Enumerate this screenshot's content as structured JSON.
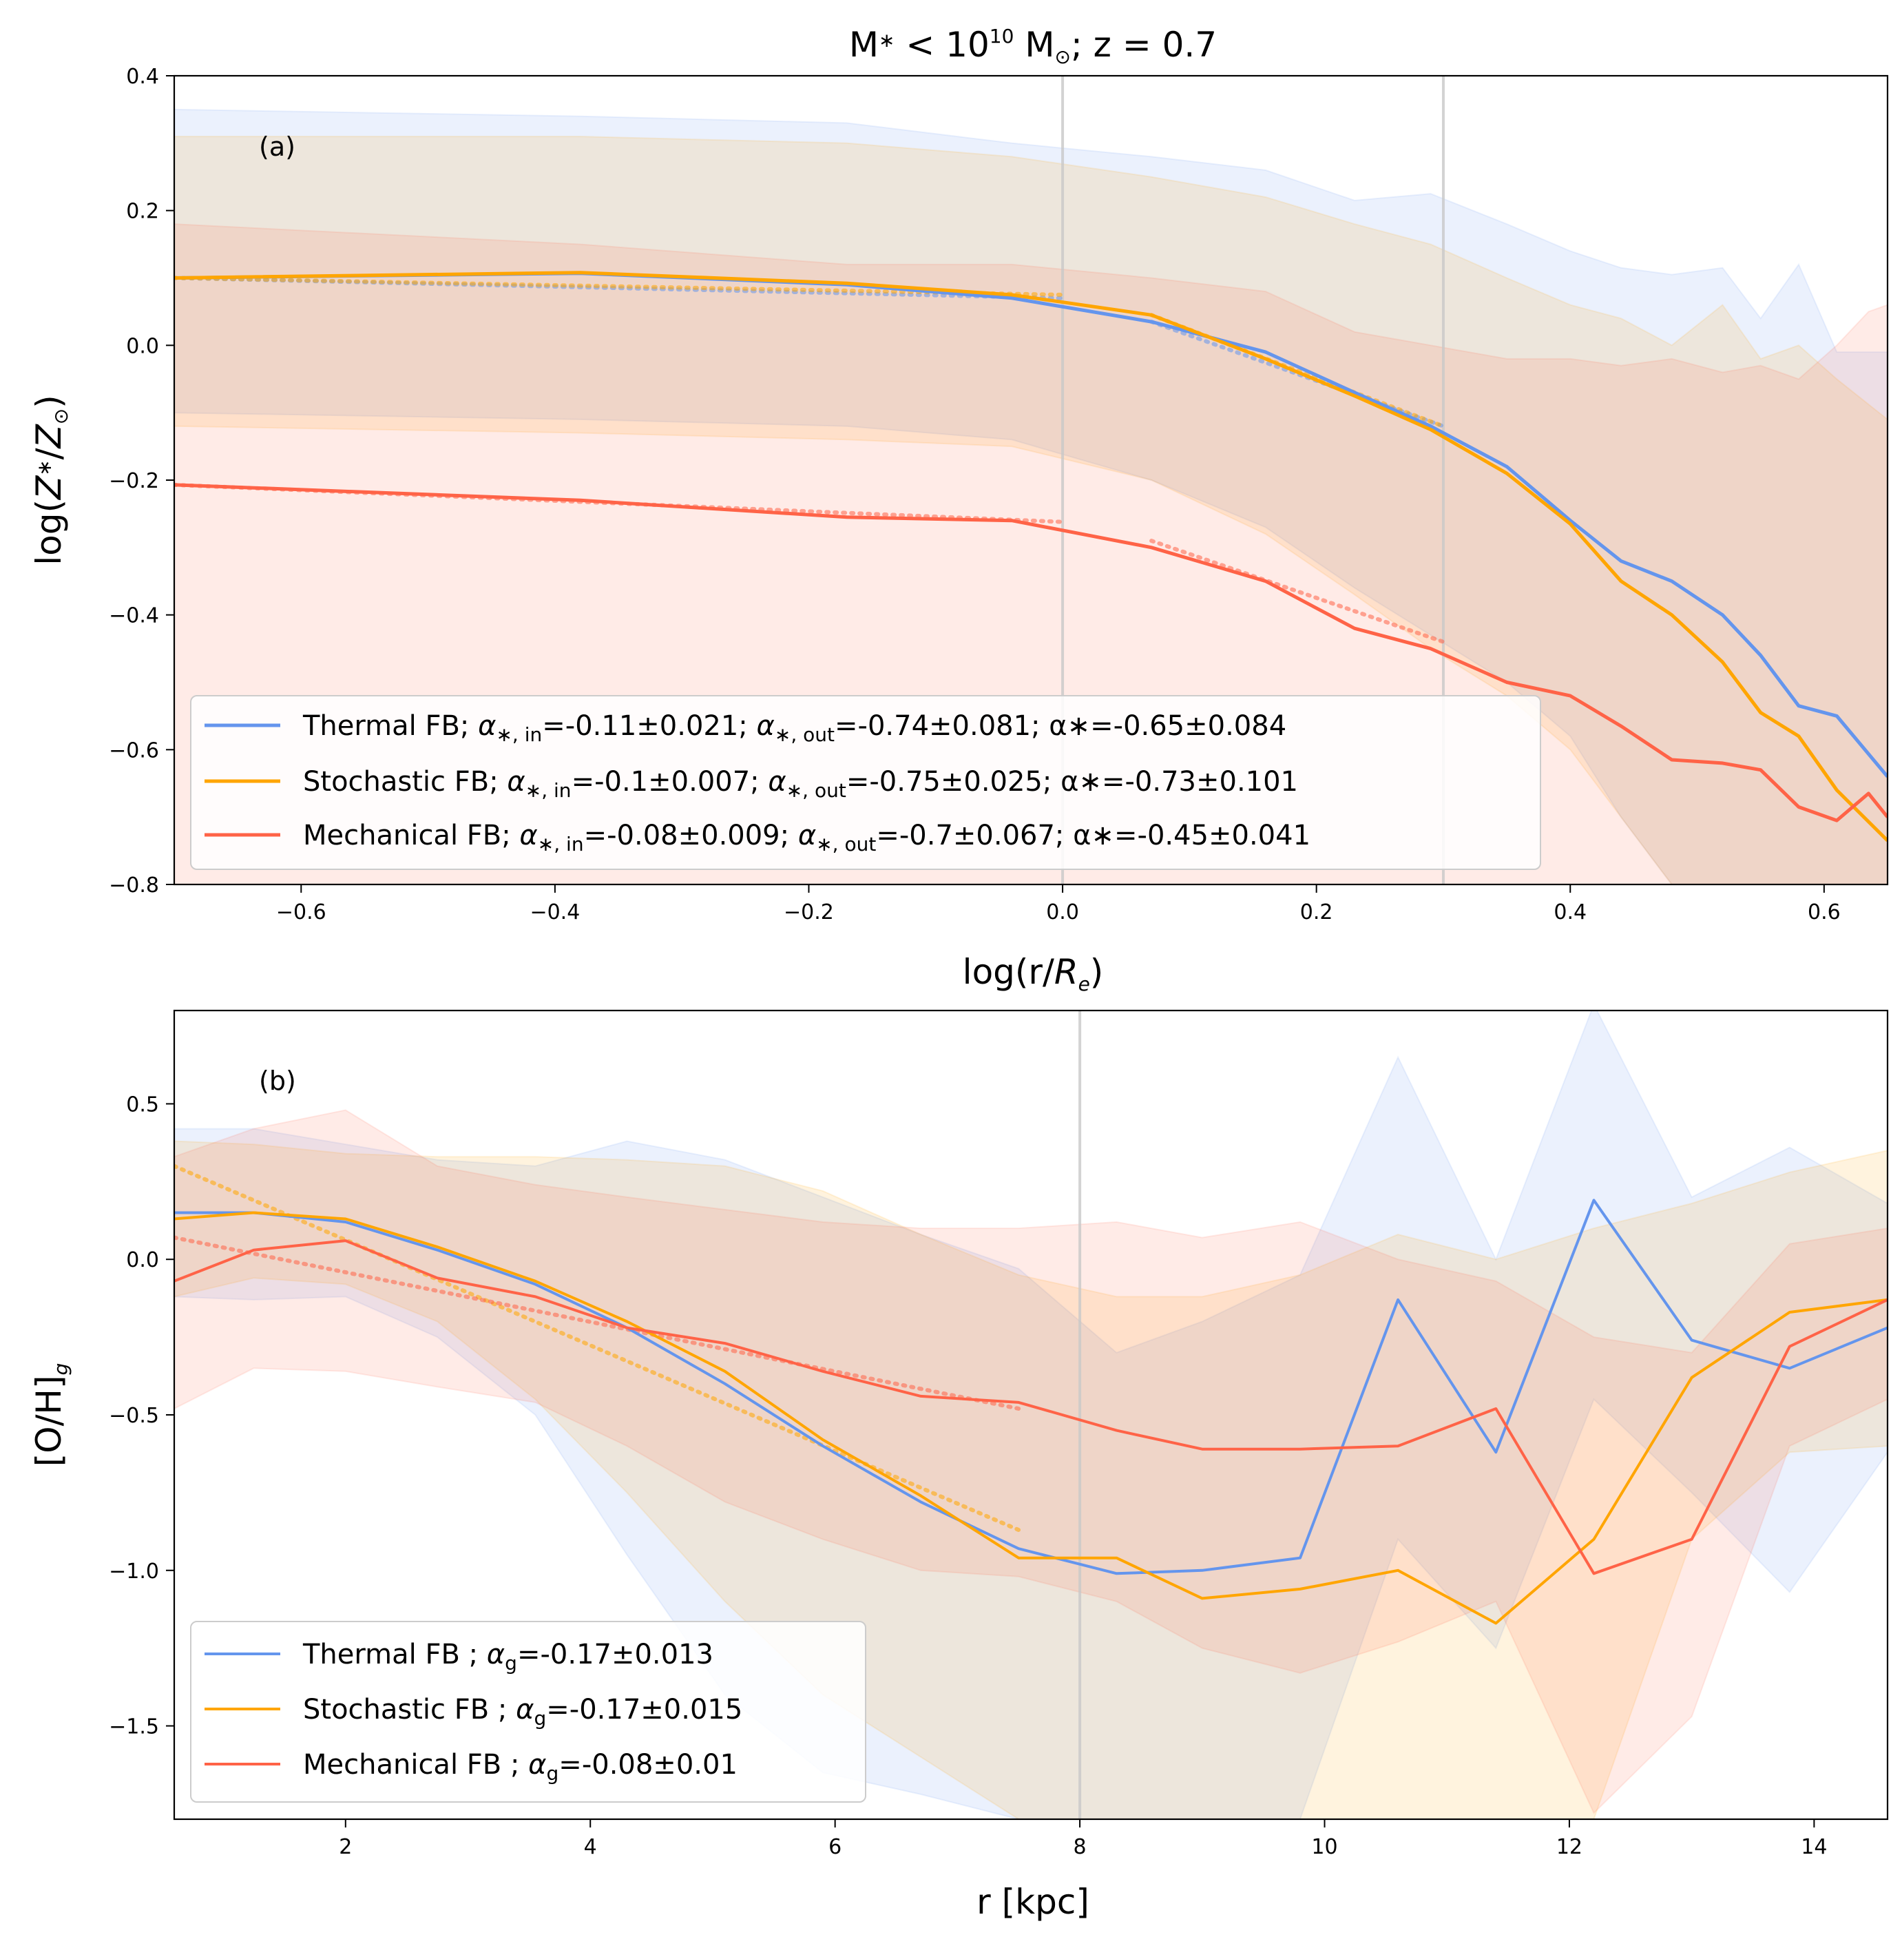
{
  "colors": {
    "thermal": "#6495ed",
    "stochastic": "#ffa500",
    "mechanical": "#ff6347",
    "vline": "#c8c8c8"
  },
  "chart_data": [
    {
      "type": "line",
      "panel_label": "(a)",
      "title": {
        "prefix": "M",
        "star": "∗",
        "lt": " < 10",
        "exp": "10",
        "unit": " M",
        "sun": "⊙",
        "rest": "; z = 0.7"
      },
      "xlabel": {
        "pre": "log(r/",
        "R": "R",
        "sub": "e",
        "post": ")"
      },
      "ylabel": {
        "pre": "log(",
        "Z": "Z",
        "star": "∗",
        "slash": "/",
        "Z2": "Z",
        "sun": "⊙",
        "post": ")"
      },
      "xlim": [
        -0.7,
        0.65
      ],
      "ylim": [
        -0.8,
        0.4
      ],
      "xticks": [
        -0.6,
        -0.4,
        -0.2,
        0.0,
        0.2,
        0.4,
        0.6
      ],
      "xtick_labels": [
        "−0.6",
        "−0.4",
        "−0.2",
        "0.0",
        "0.2",
        "0.4",
        "0.6"
      ],
      "yticks": [
        -0.8,
        -0.6,
        -0.4,
        -0.2,
        0.0,
        0.2,
        0.4
      ],
      "ytick_labels": [
        "−0.8",
        "−0.6",
        "−0.4",
        "−0.2",
        "0.0",
        "0.2",
        "0.4"
      ],
      "vlines": [
        0.0,
        0.3
      ],
      "series": [
        {
          "key": "thermal",
          "x": [
            -0.7,
            -0.38,
            -0.17,
            -0.04,
            0.07,
            0.16,
            0.23,
            0.29,
            0.35,
            0.4,
            0.44,
            0.48,
            0.52,
            0.55,
            0.58,
            0.61,
            0.65
          ],
          "y": [
            0.1,
            0.107,
            0.09,
            0.07,
            0.035,
            -0.01,
            -0.07,
            -0.12,
            -0.18,
            -0.26,
            -0.32,
            -0.35,
            -0.4,
            -0.46,
            -0.535,
            -0.55,
            -0.64
          ],
          "upper": [
            0.35,
            0.34,
            0.33,
            0.3,
            0.28,
            0.26,
            0.215,
            0.225,
            0.18,
            0.14,
            0.115,
            0.105,
            0.115,
            0.04,
            0.12,
            -0.01,
            -0.01
          ],
          "lower": [
            -0.1,
            -0.11,
            -0.12,
            -0.14,
            -0.2,
            -0.27,
            -0.36,
            -0.43,
            -0.5,
            -0.58,
            -0.7,
            -0.8,
            -0.8,
            -0.8,
            -0.8,
            -0.8,
            -0.8
          ],
          "fit": [
            {
              "x": [
                -0.7,
                0.0
              ],
              "y": [
                0.1,
                0.07
              ]
            },
            {
              "x": [
                0.07,
                0.3
              ],
              "y": [
                0.035,
                -0.12
              ]
            }
          ],
          "legend": {
            "name": "Thermal FB; ",
            "alpha": "α",
            "sub_in": "∗, in",
            "val_in": "=-0.11±0.021; ",
            "sub_out": "∗, out",
            "val_out": "=-0.74±0.081; ",
            "tot": "α∗=-0.65±0.084"
          }
        },
        {
          "key": "stochastic",
          "x": [
            -0.7,
            -0.38,
            -0.17,
            -0.04,
            0.07,
            0.16,
            0.23,
            0.29,
            0.35,
            0.4,
            0.44,
            0.48,
            0.52,
            0.55,
            0.58,
            0.61,
            0.65
          ],
          "y": [
            0.1,
            0.108,
            0.092,
            0.075,
            0.045,
            -0.02,
            -0.075,
            -0.125,
            -0.19,
            -0.265,
            -0.35,
            -0.4,
            -0.47,
            -0.545,
            -0.58,
            -0.66,
            -0.735
          ],
          "upper": [
            0.31,
            0.31,
            0.3,
            0.28,
            0.25,
            0.22,
            0.18,
            0.15,
            0.1,
            0.06,
            0.04,
            0.0,
            0.06,
            -0.02,
            0.0,
            -0.05,
            -0.11
          ],
          "lower": [
            -0.12,
            -0.13,
            -0.14,
            -0.15,
            -0.2,
            -0.28,
            -0.37,
            -0.45,
            -0.52,
            -0.6,
            -0.7,
            -0.8,
            -0.8,
            -0.8,
            -0.8,
            -0.8,
            -0.8
          ],
          "fit": [
            {
              "x": [
                -0.7,
                0.0
              ],
              "y": [
                0.1,
                0.075
              ]
            },
            {
              "x": [
                0.07,
                0.3
              ],
              "y": [
                0.045,
                -0.12
              ]
            }
          ],
          "legend": {
            "name": "Stochastic FB; ",
            "alpha": "α",
            "sub_in": "∗, in",
            "val_in": "=-0.1±0.007; ",
            "sub_out": "∗, out",
            "val_out": "=-0.75±0.025; ",
            "tot": "α∗=-0.73±0.101"
          }
        },
        {
          "key": "mechanical",
          "x": [
            -0.7,
            -0.38,
            -0.17,
            -0.04,
            0.07,
            0.16,
            0.23,
            0.29,
            0.35,
            0.4,
            0.44,
            0.48,
            0.52,
            0.55,
            0.58,
            0.61,
            0.635,
            0.65
          ],
          "y": [
            -0.207,
            -0.23,
            -0.255,
            -0.26,
            -0.3,
            -0.35,
            -0.42,
            -0.45,
            -0.5,
            -0.52,
            -0.565,
            -0.615,
            -0.62,
            -0.63,
            -0.685,
            -0.705,
            -0.665,
            -0.7
          ],
          "upper": [
            0.18,
            0.15,
            0.12,
            0.12,
            0.1,
            0.08,
            0.02,
            0.0,
            -0.02,
            -0.02,
            -0.03,
            -0.02,
            -0.04,
            -0.03,
            -0.05,
            0.0,
            0.05,
            0.06
          ],
          "lower": [
            -0.8,
            -0.8,
            -0.8,
            -0.8,
            -0.8,
            -0.8,
            -0.8,
            -0.8,
            -0.8,
            -0.8,
            -0.8,
            -0.8,
            -0.8,
            -0.8,
            -0.8,
            -0.8,
            -0.8,
            -0.8
          ],
          "fit": [
            {
              "x": [
                -0.7,
                0.0
              ],
              "y": [
                -0.207,
                -0.262
              ]
            },
            {
              "x": [
                0.07,
                0.3
              ],
              "y": [
                -0.29,
                -0.44
              ]
            }
          ],
          "legend": {
            "name": "Mechanical FB; ",
            "alpha": "α",
            "sub_in": "∗, in",
            "val_in": "=-0.08±0.009; ",
            "sub_out": "∗, out",
            "val_out": "=-0.7±0.067; ",
            "tot": "α∗=-0.45±0.041"
          }
        }
      ]
    },
    {
      "type": "line",
      "panel_label": "(b)",
      "xlabel": "r [kpc]",
      "ylabel": {
        "pre": "[O/H]",
        "sub": "g"
      },
      "xlim": [
        0.6,
        14.6
      ],
      "ylim": [
        -1.8,
        0.8
      ],
      "xticks": [
        2,
        4,
        6,
        8,
        10,
        12,
        14
      ],
      "xtick_labels": [
        "2",
        "4",
        "6",
        "8",
        "10",
        "12",
        "14"
      ],
      "yticks": [
        -1.5,
        -1.0,
        -0.5,
        0.0,
        0.5
      ],
      "ytick_labels": [
        "−1.5",
        "−1.0",
        "−0.5",
        "0.0",
        "0.5"
      ],
      "vlines": [
        8.0
      ],
      "series": [
        {
          "key": "thermal",
          "x": [
            0.6,
            1.25,
            2.0,
            2.75,
            3.55,
            4.3,
            5.1,
            5.9,
            6.7,
            7.5,
            8.3,
            9.0,
            9.8,
            10.6,
            11.4,
            12.2,
            13.0,
            13.8,
            14.6
          ],
          "y": [
            0.15,
            0.15,
            0.12,
            0.03,
            -0.08,
            -0.22,
            -0.4,
            -0.6,
            -0.78,
            -0.93,
            -1.01,
            -1.0,
            -0.96,
            -0.13,
            -0.62,
            0.19,
            -0.26,
            -0.35,
            -0.22
          ],
          "upper": [
            0.42,
            0.42,
            0.37,
            0.32,
            0.3,
            0.38,
            0.32,
            0.2,
            0.08,
            -0.03,
            -0.3,
            -0.2,
            -0.05,
            0.65,
            0.0,
            0.82,
            0.2,
            0.36,
            0.18
          ],
          "lower": [
            -0.12,
            -0.13,
            -0.12,
            -0.25,
            -0.5,
            -0.95,
            -1.4,
            -1.65,
            -1.72,
            -1.8,
            -1.8,
            -1.8,
            -1.8,
            -0.9,
            -1.25,
            -0.45,
            -0.75,
            -1.07,
            -0.62
          ],
          "fit": [],
          "legend": {
            "name": "Thermal FB ; ",
            "alpha": "α",
            "sub": "g",
            "val": "=-0.17±0.013"
          }
        },
        {
          "key": "stochastic",
          "x": [
            0.6,
            1.25,
            2.0,
            2.75,
            3.55,
            4.3,
            5.1,
            5.9,
            6.7,
            7.5,
            8.3,
            9.0,
            9.8,
            10.6,
            11.4,
            12.2,
            13.0,
            13.8,
            14.6
          ],
          "y": [
            0.13,
            0.15,
            0.13,
            0.04,
            -0.07,
            -0.2,
            -0.36,
            -0.58,
            -0.76,
            -0.96,
            -0.96,
            -1.09,
            -1.06,
            -1.0,
            -1.17,
            -0.9,
            -0.38,
            -0.17,
            -0.13
          ],
          "upper": [
            0.38,
            0.37,
            0.34,
            0.33,
            0.33,
            0.32,
            0.3,
            0.22,
            0.08,
            -0.05,
            -0.12,
            -0.12,
            -0.05,
            0.08,
            0.0,
            0.1,
            0.18,
            0.28,
            0.35
          ],
          "lower": [
            -0.12,
            -0.06,
            -0.08,
            -0.2,
            -0.45,
            -0.75,
            -1.1,
            -1.4,
            -1.6,
            -1.8,
            -1.8,
            -1.8,
            -1.8,
            -1.8,
            -1.8,
            -1.8,
            -0.9,
            -0.62,
            -0.6
          ],
          "fit": [
            {
              "x": [
                0.6,
                7.5
              ],
              "y": [
                0.3,
                -0.87
              ]
            }
          ],
          "legend": {
            "name": "Stochastic FB ; ",
            "alpha": "α",
            "sub": "g",
            "val": "=-0.17±0.015"
          }
        },
        {
          "key": "mechanical",
          "x": [
            0.6,
            1.25,
            2.0,
            2.75,
            3.55,
            4.3,
            5.1,
            5.9,
            6.7,
            7.5,
            8.3,
            9.0,
            9.8,
            10.6,
            11.4,
            12.2,
            13.0,
            13.8,
            14.6
          ],
          "y": [
            -0.07,
            0.03,
            0.06,
            -0.06,
            -0.12,
            -0.22,
            -0.27,
            -0.36,
            -0.44,
            -0.46,
            -0.55,
            -0.61,
            -0.61,
            -0.6,
            -0.48,
            -1.01,
            -0.9,
            -0.28,
            -0.13
          ],
          "upper": [
            0.33,
            0.42,
            0.48,
            0.3,
            0.24,
            0.2,
            0.16,
            0.12,
            0.1,
            0.1,
            0.12,
            0.07,
            0.12,
            0.0,
            -0.07,
            -0.25,
            -0.3,
            0.05,
            0.1
          ],
          "lower": [
            -0.48,
            -0.35,
            -0.36,
            -0.41,
            -0.46,
            -0.6,
            -0.78,
            -0.9,
            -1.0,
            -1.02,
            -1.1,
            -1.25,
            -1.33,
            -1.23,
            -1.1,
            -1.78,
            -1.47,
            -0.6,
            -0.45
          ],
          "fit": [
            {
              "x": [
                0.6,
                7.5
              ],
              "y": [
                0.07,
                -0.48
              ]
            }
          ],
          "legend": {
            "name": "Mechanical FB ; ",
            "alpha": "α",
            "sub": "g",
            "val": "=-0.08±0.01"
          }
        }
      ]
    }
  ]
}
